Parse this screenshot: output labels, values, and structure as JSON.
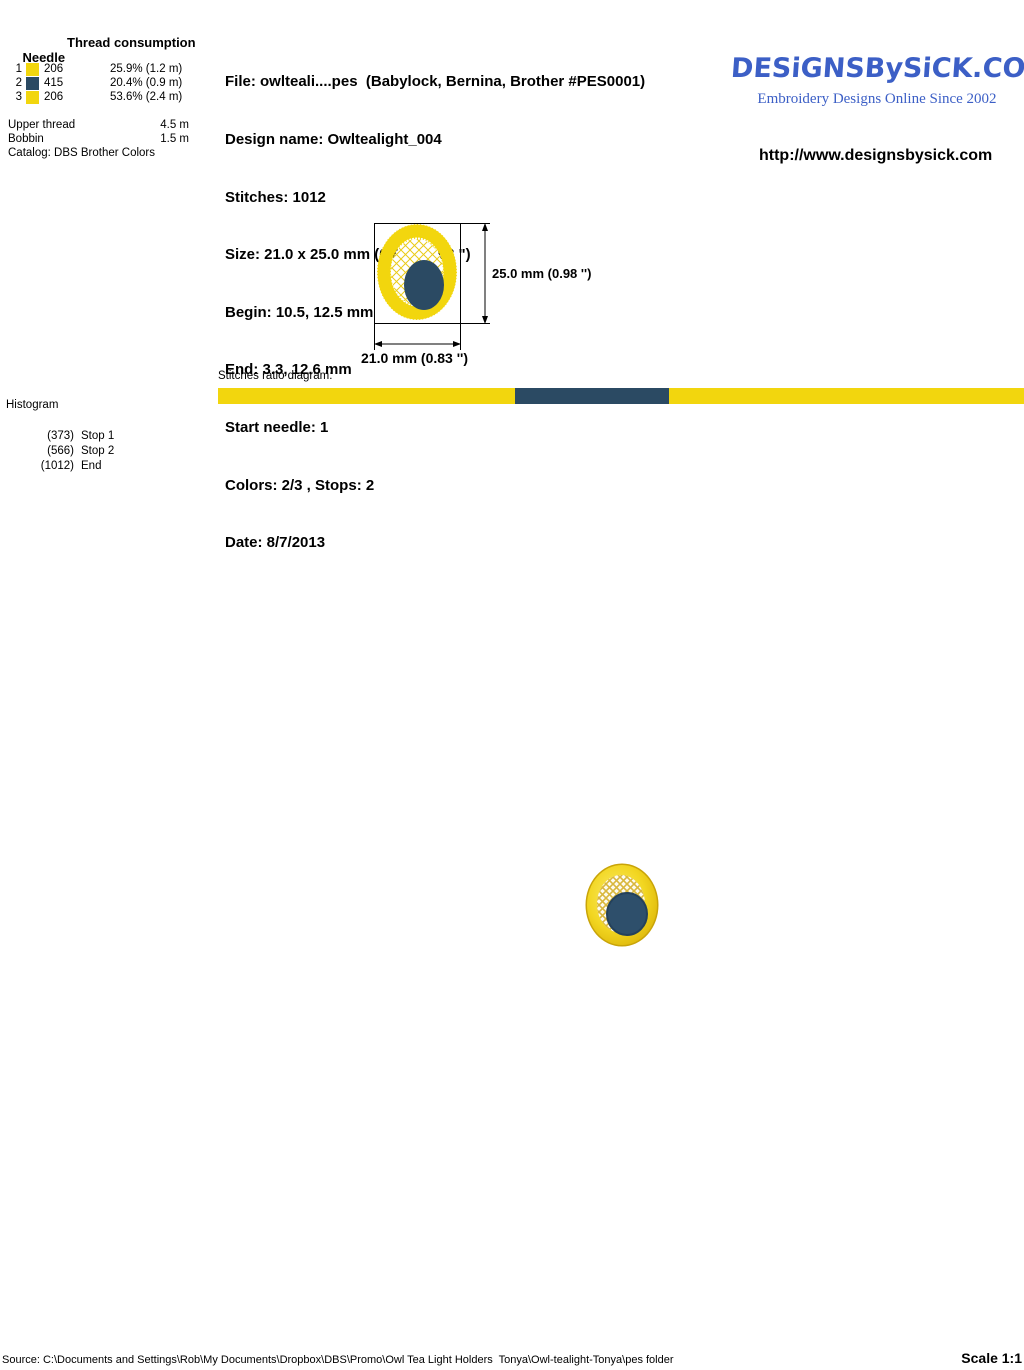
{
  "thread_table": {
    "header_needle": "Needle",
    "header_consumption": "Thread consumption",
    "rows": [
      {
        "needle": "1",
        "swatch_color": "#F2D60E",
        "code": "206",
        "consumption": "25.9% (1.2 m)"
      },
      {
        "needle": "2",
        "swatch_color": "#2B4A63",
        "code": "415",
        "consumption": "20.4% (0.9 m)"
      },
      {
        "needle": "3",
        "swatch_color": "#F2D60E",
        "code": "206",
        "consumption": "53.6% (2.4 m)"
      }
    ],
    "upper_thread_label": "Upper thread",
    "upper_thread_value": "4.5 m",
    "bobbin_label": "Bobbin",
    "bobbin_value": "1.5 m",
    "catalog": "Catalog: DBS Brother Colors"
  },
  "info": {
    "file": "File: owlteali....pes  (Babylock, Bernina, Brother #PES0001)",
    "design_name": "Design name: Owltealight_004",
    "stitches": "Stitches: 1012",
    "size": "Size: 21.0 x 25.0 mm (0.83 x 0.98 \")",
    "begin": "Begin: 10.5, 12.5 mm",
    "end": "End: 3.3, 12.6 mm",
    "start_needle": "Start needle: 1",
    "colors": "Colors: 2/3 , Stops: 2",
    "date": "Date: 8/7/2013"
  },
  "brand": {
    "logo_text": "DESiGNSBySiCK.COM",
    "tagline": "Embroidery Designs Online Since 2002",
    "url": "http://www.designsbysick.com",
    "logo_color": "#3C5FC6"
  },
  "dimensions": {
    "height_label": "25.0 mm (0.98 '')",
    "width_label": "21.0 mm (0.83 '')"
  },
  "ratio_diagram": {
    "label": "Stitches ratio diagram:",
    "segments": [
      {
        "color": "#F2D60E",
        "percent": 36.9
      },
      {
        "color": "#2B4A63",
        "percent": 19.0
      },
      {
        "color": "#F2D60E",
        "percent": 44.1
      }
    ]
  },
  "histogram": {
    "label": "Histogram",
    "entries": [
      {
        "count": "(373)",
        "label": "Stop 1"
      },
      {
        "count": "(566)",
        "label": "Stop 2"
      },
      {
        "count": "(1012)",
        "label": "End"
      }
    ]
  },
  "footer": {
    "source": "Source: C:\\Documents and Settings\\Rob\\My Documents\\Dropbox\\DBS\\Promo\\Owl Tea Light Holders  Tonya\\Owl-tealight-Tonya\\pes folder",
    "scale": "Scale 1:1"
  }
}
